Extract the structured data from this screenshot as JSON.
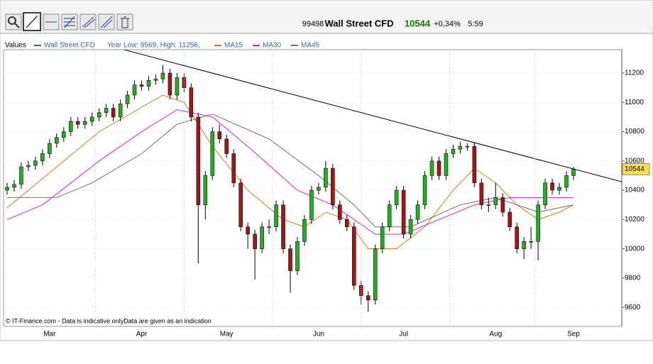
{
  "chart_data": {
    "type": "candlestick",
    "code": "99498",
    "title": "Wall Street CFD",
    "last": 10544,
    "change": "+0,34%",
    "time": "5:59",
    "legend_label": "Values",
    "year_range": "Year Low: 9569, High: 11256,",
    "footer": "© IT-Finance.com - Data is indicative onlyData are given as an indication",
    "series_color": "#3a5fa0",
    "up_color": "#22b022",
    "down_color": "#a51515",
    "categories": [
      null,
      null,
      null,
      null,
      null,
      null,
      "Mar",
      null,
      null,
      null,
      null,
      null,
      null,
      null,
      null,
      null,
      null,
      null,
      null,
      "Apr",
      null,
      null,
      null,
      null,
      null,
      null,
      null,
      null,
      null,
      null,
      null,
      "May",
      null,
      null,
      null,
      null,
      null,
      null,
      null,
      null,
      null,
      null,
      null,
      null,
      "Jun",
      null,
      null,
      null,
      null,
      null,
      null,
      null,
      null,
      null,
      null,
      null,
      "Jul",
      null,
      null,
      null,
      null,
      null,
      null,
      null,
      null,
      null,
      null,
      null,
      null,
      "Aug",
      null,
      null,
      null,
      null,
      null,
      null,
      null,
      null,
      null,
      null,
      "Sep"
    ],
    "open": [
      10400,
      10420,
      10440,
      10560,
      10570,
      10600,
      10650,
      10720,
      10760,
      10800,
      10870,
      10850,
      10870,
      10900,
      10930,
      10960,
      10900,
      10990,
      11050,
      11120,
      11110,
      11150,
      11160,
      11200,
      11050,
      11170,
      11100,
      10900,
      10300,
      10500,
      10800,
      10750,
      10650,
      10450,
      10150,
      10100,
      10000,
      10150,
      10150,
      10300,
      10000,
      9850,
      10050,
      10200,
      10400,
      10420,
      10550,
      10300,
      10200,
      10150,
      9750,
      9680,
      9650,
      10000,
      10150,
      10300,
      10400,
      10100,
      10200,
      10300,
      10500,
      10600,
      10500,
      10650,
      10680,
      10700,
      10700,
      10450,
      10300,
      10300,
      10350,
      10250,
      10150,
      10000,
      10050,
      10050,
      10300,
      10450,
      10400,
      10420,
      10500
    ],
    "high": [
      10450,
      10470,
      10590,
      10600,
      10630,
      10680,
      10750,
      10790,
      10830,
      10900,
      10900,
      10900,
      10930,
      10960,
      10990,
      10990,
      11020,
      11080,
      11150,
      11150,
      11180,
      11190,
      11256,
      11230,
      11200,
      11200,
      11130,
      10930,
      10530,
      10830,
      10850,
      10780,
      10680,
      10480,
      10180,
      10130,
      10180,
      10200,
      10330,
      10330,
      10030,
      10080,
      10230,
      10430,
      10450,
      10600,
      10580,
      10330,
      10230,
      10180,
      9780,
      9710,
      10030,
      10180,
      10330,
      10430,
      10430,
      10230,
      10330,
      10530,
      10630,
      10630,
      10680,
      10710,
      10730,
      10720,
      10730,
      10480,
      10350,
      10450,
      10380,
      10280,
      10180,
      10080,
      10150,
      10330,
      10480,
      10480,
      10450,
      10530,
      10560
    ],
    "low": [
      10370,
      10390,
      10410,
      10530,
      10540,
      10570,
      10620,
      10690,
      10730,
      10770,
      10820,
      10820,
      10840,
      10870,
      10900,
      10870,
      10870,
      10960,
      11020,
      11080,
      11080,
      11120,
      11130,
      11020,
      11020,
      11070,
      10870,
      9900,
      10200,
      10470,
      10720,
      10620,
      10420,
      10120,
      10000,
      9790,
      9970,
      10100,
      10120,
      9970,
      9700,
      9820,
      10020,
      10170,
      10370,
      10390,
      10270,
      10170,
      10120,
      9720,
      9620,
      9570,
      9620,
      9970,
      10120,
      10270,
      10070,
      10070,
      10170,
      10270,
      10470,
      10470,
      10470,
      10620,
      10650,
      10670,
      10420,
      10270,
      10250,
      10270,
      10220,
      10120,
      9970,
      9930,
      10000,
      9920,
      10270,
      10370,
      10370,
      10390,
      10470
    ],
    "close": [
      10420,
      10440,
      10560,
      10570,
      10600,
      10650,
      10720,
      10760,
      10800,
      10870,
      10850,
      10870,
      10900,
      10930,
      10960,
      10900,
      10990,
      11050,
      11120,
      11110,
      11150,
      11160,
      11200,
      11050,
      11170,
      11100,
      10900,
      10300,
      10500,
      10800,
      10750,
      10650,
      10450,
      10150,
      10100,
      10000,
      10150,
      10150,
      10300,
      10000,
      9850,
      10050,
      10200,
      10400,
      10420,
      10550,
      10300,
      10200,
      10150,
      9750,
      9680,
      9650,
      10000,
      10150,
      10300,
      10400,
      10100,
      10200,
      10300,
      10500,
      10600,
      10500,
      10650,
      10680,
      10700,
      10700,
      10450,
      10300,
      10300,
      10350,
      10250,
      10150,
      10000,
      10050,
      10050,
      10300,
      10450,
      10400,
      10420,
      10500,
      10544
    ],
    "overlays": [
      {
        "name": "MA15",
        "color": "#e07818",
        "x": [
          0,
          13,
          22,
          25,
          29,
          34,
          39,
          42,
          45,
          48,
          51,
          55,
          59,
          63,
          66,
          69,
          72,
          75,
          78,
          80
        ],
        "values": [
          10280,
          10800,
          11050,
          11000,
          10700,
          10400,
          10200,
          10150,
          10250,
          10200,
          10000,
          10000,
          10150,
          10400,
          10550,
          10450,
          10300,
          10200,
          10250,
          10300
        ]
      },
      {
        "name": "MA30",
        "color": "#e020e0",
        "x": [
          0,
          5,
          9,
          13,
          19,
          24,
          29,
          34,
          41,
          46,
          52,
          56,
          61,
          66,
          71,
          75,
          80
        ],
        "values": [
          10200,
          10300,
          10450,
          10600,
          10800,
          10950,
          10900,
          10700,
          10400,
          10300,
          10100,
          10100,
          10200,
          10300,
          10350,
          10350,
          10350
        ]
      },
      {
        "name": "MA45",
        "color": "#707070",
        "x": [
          0,
          7,
          12,
          19,
          24,
          29,
          37,
          44,
          49,
          52,
          57,
          64,
          69,
          75,
          80
        ],
        "values": [
          10350,
          10350,
          10450,
          10650,
          10850,
          10920,
          10750,
          10500,
          10300,
          10150,
          10150,
          10300,
          10350,
          10250,
          10300
        ]
      }
    ],
    "trendline": {
      "color": "#000000",
      "x": [
        16.5,
        86.8
      ],
      "values": [
        11360,
        10458
      ]
    },
    "ylim": [
      9470,
      11360
    ],
    "yticks": [
      9600,
      9800,
      10000,
      10200,
      10400,
      10600,
      10800,
      11000,
      11200
    ],
    "grid": true
  }
}
